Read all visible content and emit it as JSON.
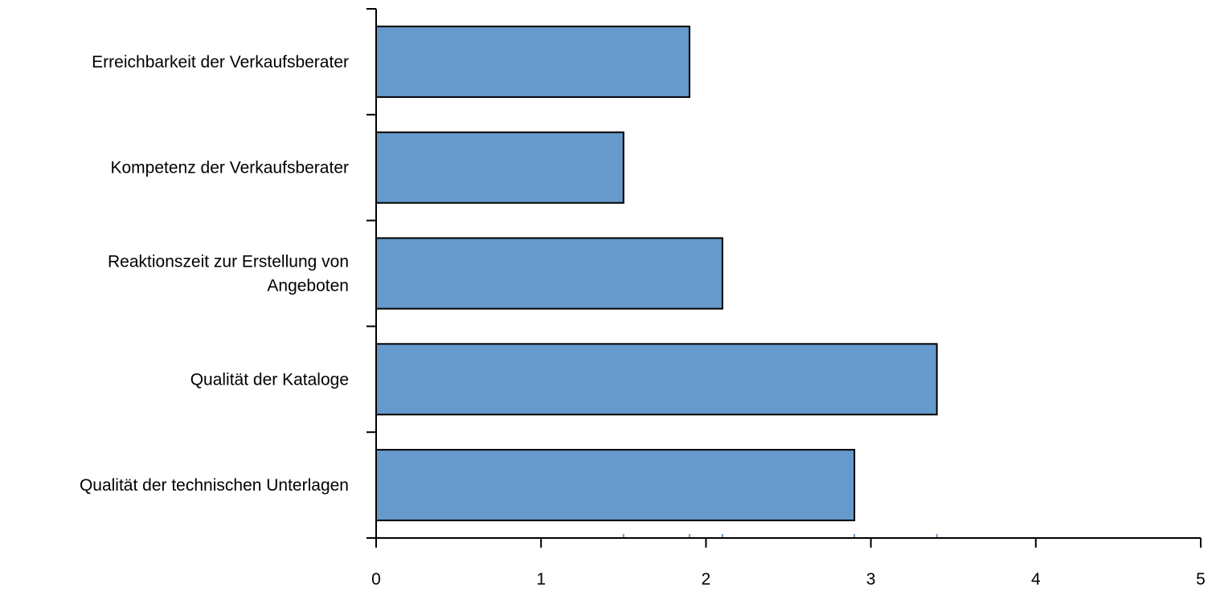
{
  "chart_data": {
    "type": "bar",
    "orientation": "horizontal",
    "categories": [
      [
        "Erreichbarkeit der Verkaufsberater"
      ],
      [
        "Kompetenz der Verkaufsberater"
      ],
      [
        "Reaktionszeit zur Erstellung von",
        "Angeboten"
      ],
      [
        "Qualität der Kataloge"
      ],
      [
        "Qualität der technischen Unterlagen"
      ]
    ],
    "values": [
      1.9,
      1.5,
      2.1,
      3.4,
      2.9
    ],
    "xlim": [
      0,
      5
    ],
    "xticks": [
      "0",
      "1",
      "2",
      "3",
      "4",
      "5"
    ],
    "title": "",
    "xlabel": "",
    "ylabel": "",
    "grid": false,
    "legend": "none",
    "colors": {
      "bar_fill": "#6699cc",
      "bar_stroke": "#000000",
      "axis": "#000000",
      "marker": "#6699cc"
    }
  }
}
